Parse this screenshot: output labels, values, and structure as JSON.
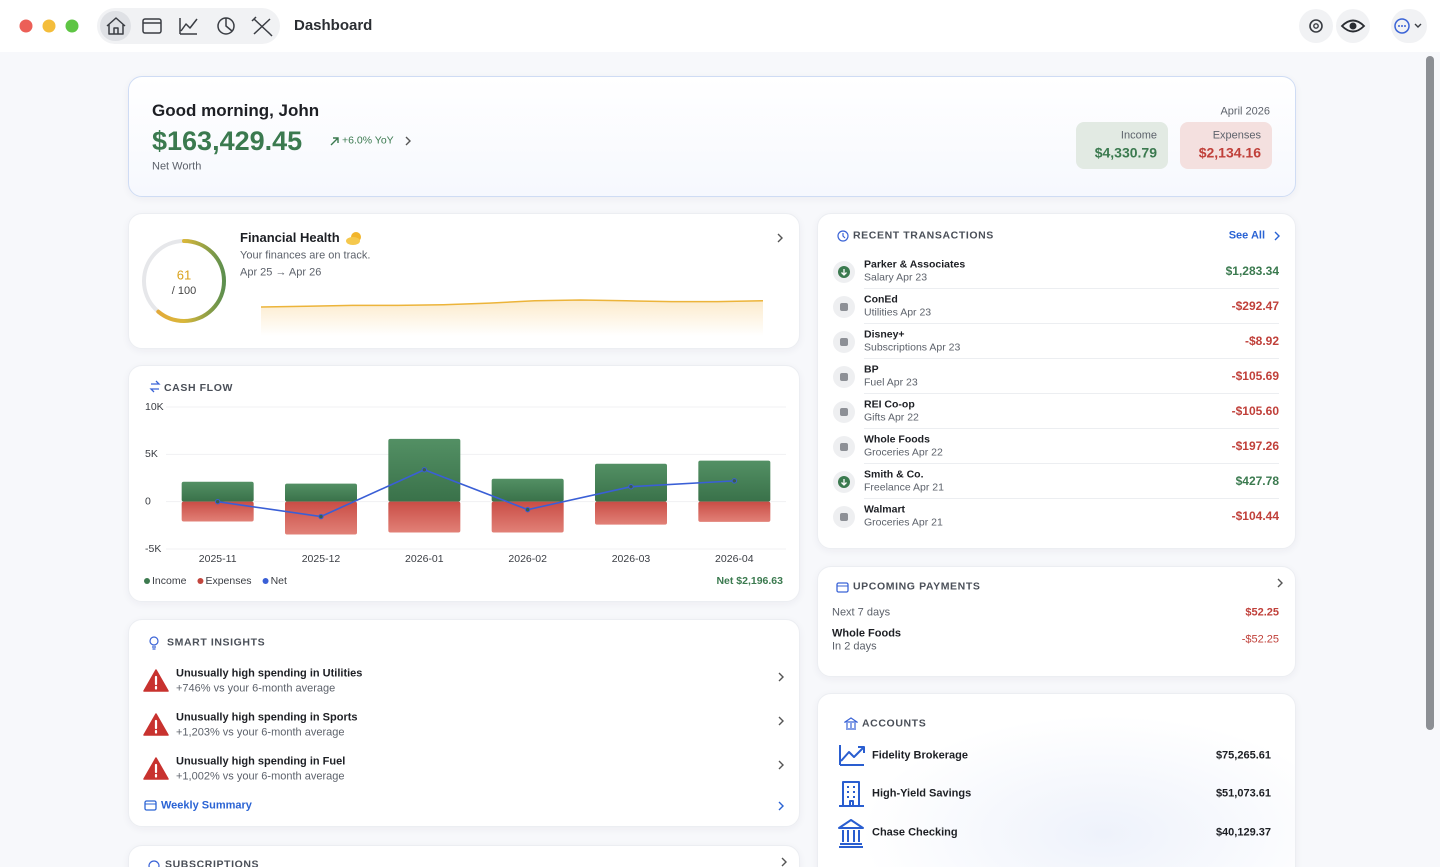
{
  "header": {
    "title": "Dashboard"
  },
  "summary": {
    "greeting": "Good morning, John",
    "net_worth": "$163,429.45",
    "change": "+6.0% YoY",
    "net_worth_label": "Net Worth",
    "period": "April 2026",
    "income_label": "Income",
    "income": "$4,330.79",
    "expenses_label": "Expenses",
    "expenses": "$2,134.16"
  },
  "health": {
    "title": "Financial Health",
    "subtitle": "Your finances are on track.",
    "range": "Apr 25 → Apr 26",
    "score": 61,
    "score_max": {
      "value": 100,
      "label": "/ 100"
    },
    "trend": [
      56,
      56.5,
      57,
      57,
      57.5,
      58.5,
      60,
      60.5,
      60,
      59.5,
      59.5,
      60
    ]
  },
  "cash_flow": {
    "title": "CASH FLOW",
    "type": "bar",
    "categories": [
      "2025-11",
      "2025-12",
      "2026-01",
      "2026-02",
      "2026-03",
      "2026-04"
    ],
    "series": [
      {
        "name": "Income",
        "color": "#3d7a4f",
        "values": [
          2100,
          1900,
          6630,
          2420,
          4000,
          4330.79
        ]
      },
      {
        "name": "Expenses",
        "color": "#c2463e",
        "values": [
          -2100,
          -3470,
          -3260,
          -3260,
          -2420,
          -2134.16
        ]
      },
      {
        "name": "Net",
        "color": "#3a5fd6",
        "type": "line",
        "values": [
          0,
          -1570,
          3370,
          -840,
          1580,
          2196.63
        ]
      }
    ],
    "ylim": [
      -5000,
      10000
    ],
    "yticks": [
      {
        "value": 10000,
        "label": "10K"
      },
      {
        "value": 5000,
        "label": "5K"
      },
      0,
      {
        "value": -5000,
        "label": "-5K"
      }
    ],
    "grid": true,
    "net_total_label": "Net $2,196.63"
  },
  "insights": {
    "title": "SMART INSIGHTS",
    "items": [
      {
        "title": "Unusually high spending in Utilities",
        "detail": "+746% vs your 6-month average"
      },
      {
        "title": "Unusually high spending in Sports",
        "detail": "+1,203% vs your 6-month average"
      },
      {
        "title": "Unusually high spending in Fuel",
        "detail": "+1,002% vs your 6-month average"
      }
    ],
    "weekly": "Weekly Summary"
  },
  "subscriptions": {
    "title": "SUBSCRIPTIONS"
  },
  "transactions": {
    "title": "RECENT TRANSACTIONS",
    "see_all": "See All",
    "items": [
      {
        "name": "Parker & Associates",
        "category": "Salary",
        "date": "Apr 23",
        "amount": "$1,283.34"
      },
      {
        "name": "ConEd",
        "category": "Utilities",
        "date": "Apr 23",
        "amount": "-$292.47"
      },
      {
        "name": "Disney+",
        "category": "Subscriptions",
        "date": "Apr 23",
        "amount": "-$8.92"
      },
      {
        "name": "BP",
        "category": "Fuel",
        "date": "Apr 23",
        "amount": "-$105.69"
      },
      {
        "name": "REI Co-op",
        "category": "Gifts",
        "date": "Apr 22",
        "amount": "-$105.60"
      },
      {
        "name": "Whole Foods",
        "category": "Groceries",
        "date": "Apr 22",
        "amount": "-$197.26"
      },
      {
        "name": "Smith & Co.",
        "category": "Freelance",
        "date": "Apr 21",
        "amount": "$427.78"
      },
      {
        "name": "Walmart",
        "category": "Groceries",
        "date": "Apr 21",
        "amount": "-$104.44"
      }
    ]
  },
  "upcoming": {
    "title": "UPCOMING PAYMENTS",
    "period_label": "Next 7 days",
    "period_total": "$52.25",
    "items": [
      {
        "name": "Whole Foods",
        "due": "In 2 days",
        "amount": "-$52.25"
      }
    ]
  },
  "accounts": {
    "title": "ACCOUNTS",
    "items": [
      {
        "name": "Fidelity Brokerage",
        "balance": "$75,265.61"
      },
      {
        "name": "High-Yield Savings",
        "balance": "$51,073.61"
      },
      {
        "name": "Chase Checking",
        "balance": "$40,129.37"
      }
    ]
  }
}
